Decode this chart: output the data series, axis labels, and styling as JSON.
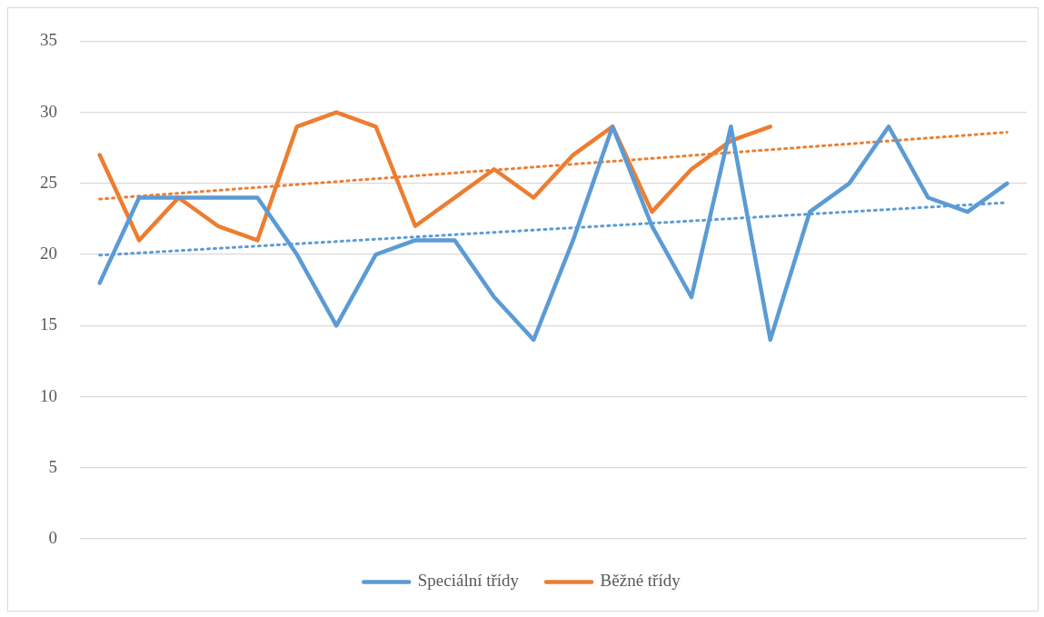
{
  "chart_data": {
    "type": "line",
    "categories": [
      null,
      null,
      null,
      null,
      null,
      null,
      null,
      null,
      null,
      null,
      null,
      null,
      null,
      null,
      null,
      null,
      null,
      null,
      null,
      null,
      null,
      null,
      null,
      null
    ],
    "series": [
      {
        "name": "Speciální třídy",
        "color": "#5b9bd5",
        "values": [
          18,
          24,
          24,
          24,
          24,
          20,
          15,
          20,
          21,
          21,
          17,
          14,
          21,
          29,
          22,
          17,
          29,
          14,
          23,
          25,
          29,
          24,
          23,
          25
        ]
      },
      {
        "name": "Běžné třídy",
        "color": "#ed7d31",
        "values": [
          27,
          21,
          24,
          22,
          21,
          29,
          30,
          29,
          22,
          24,
          26,
          24,
          27,
          29,
          23,
          26,
          28,
          29,
          null,
          null,
          null,
          null,
          null,
          null
        ]
      },
      {
        "line_style": "dotted",
        "color": "#5b9bd5",
        "values": [
          19.95,
          null,
          null,
          null,
          null,
          null,
          null,
          null,
          null,
          null,
          null,
          null,
          null,
          null,
          null,
          null,
          null,
          null,
          null,
          null,
          null,
          null,
          null,
          23.65
        ]
      },
      {
        "line_style": "dotted",
        "color": "#ed7d31",
        "values": [
          23.9,
          null,
          null,
          null,
          null,
          null,
          null,
          null,
          null,
          null,
          null,
          null,
          null,
          null,
          null,
          null,
          null,
          null,
          null,
          null,
          null,
          null,
          null,
          28.6
        ]
      }
    ],
    "ylim": [
      0,
      35
    ],
    "yticks": [
      0,
      5,
      10,
      15,
      20,
      25,
      30,
      35
    ],
    "grid": "y",
    "legend": "bottom",
    "tick_labels": "y",
    "marker": "none",
    "line_style": "solid"
  }
}
